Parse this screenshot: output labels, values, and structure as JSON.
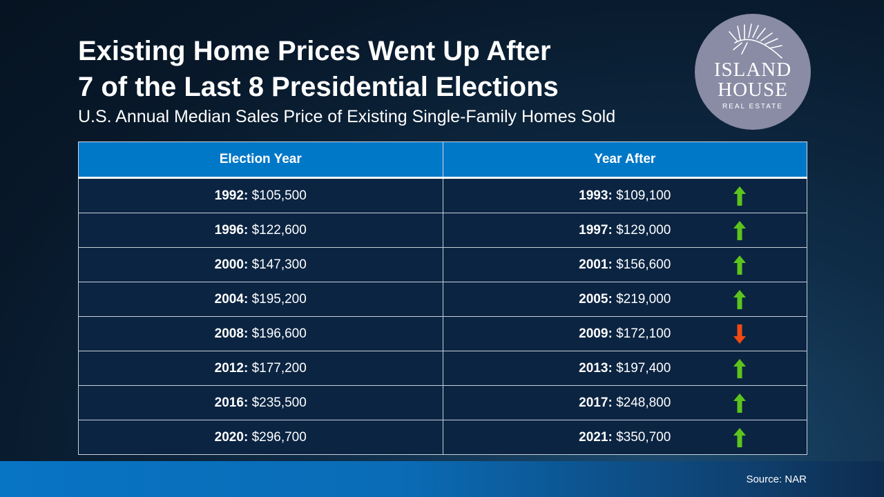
{
  "title_lines": [
    "Existing Home Prices Went Up After",
    "7 of the Last 8 Presidential Elections"
  ],
  "subtitle": "U.S. Annual Median Sales Price of Existing Single-Family Homes Sold",
  "logo": {
    "line1": "ISLAND",
    "line2": "HOUSE",
    "tagline": "REAL ESTATE",
    "icon": "palm-leaf-icon",
    "background_color": "#8a8ba4"
  },
  "table": {
    "columns": [
      "Election Year",
      "Year After"
    ],
    "rows": [
      {
        "election_year": "1992:",
        "election_price": "$105,500",
        "after_year": "1993:",
        "after_price": "$109,100",
        "direction": "up"
      },
      {
        "election_year": "1996:",
        "election_price": "$122,600",
        "after_year": "1997:",
        "after_price": "$129,000",
        "direction": "up"
      },
      {
        "election_year": "2000:",
        "election_price": "$147,300",
        "after_year": "2001:",
        "after_price": "$156,600",
        "direction": "up"
      },
      {
        "election_year": "2004:",
        "election_price": "$195,200",
        "after_year": "2005:",
        "after_price": "$219,000",
        "direction": "up"
      },
      {
        "election_year": "2008:",
        "election_price": "$196,600",
        "after_year": "2009:",
        "after_price": "$172,100",
        "direction": "down"
      },
      {
        "election_year": "2012:",
        "election_price": "$177,200",
        "after_year": "2013:",
        "after_price": "$197,400",
        "direction": "up"
      },
      {
        "election_year": "2016:",
        "election_price": "$235,500",
        "after_year": "2017:",
        "after_price": "$248,800",
        "direction": "up"
      },
      {
        "election_year": "2020:",
        "election_price": "$296,700",
        "after_year": "2021:",
        "after_price": "$350,700",
        "direction": "up"
      }
    ]
  },
  "source": "Source: NAR",
  "colors": {
    "header_blue": "#0078c8",
    "row_navy": "#0b2442",
    "arrow_up": "#5cc41c",
    "arrow_down": "#f04a12"
  }
}
